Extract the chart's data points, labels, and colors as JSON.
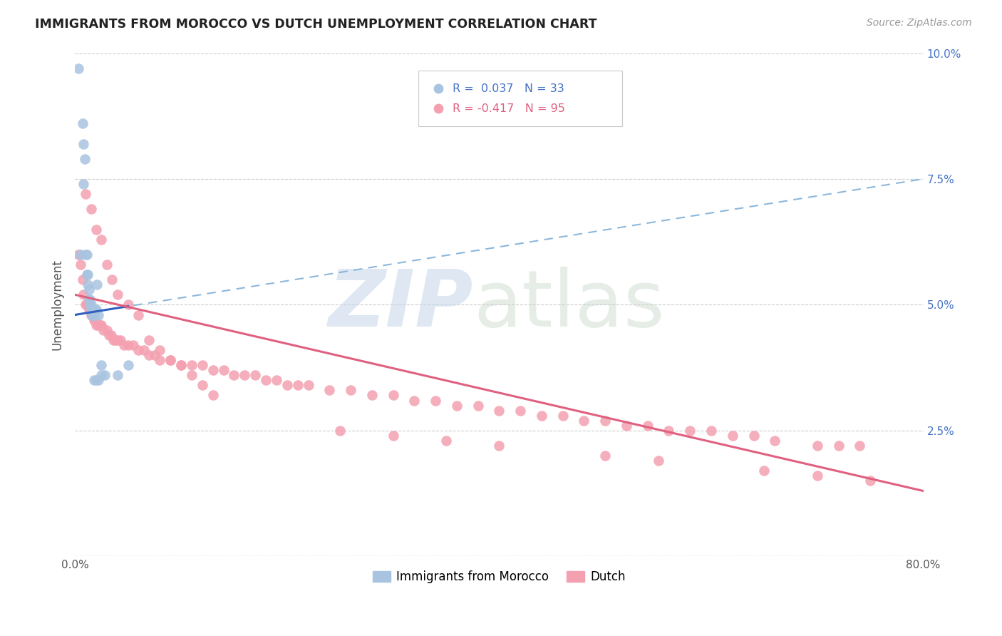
{
  "title": "IMMIGRANTS FROM MOROCCO VS DUTCH UNEMPLOYMENT CORRELATION CHART",
  "source": "Source: ZipAtlas.com",
  "ylabel": "Unemployment",
  "xlim": [
    0.0,
    0.8
  ],
  "ylim": [
    0.0,
    0.1
  ],
  "yticks": [
    0.0,
    0.025,
    0.05,
    0.075,
    0.1
  ],
  "ytick_labels": [
    "",
    "2.5%",
    "5.0%",
    "7.5%",
    "10.0%"
  ],
  "xticks": [
    0.0,
    0.1,
    0.2,
    0.3,
    0.4,
    0.5,
    0.6,
    0.7,
    0.8
  ],
  "xtick_labels": [
    "0.0%",
    "",
    "",
    "",
    "",
    "",
    "",
    "",
    "80.0%"
  ],
  "morocco_color": "#a8c4e0",
  "dutch_color": "#f4a0b0",
  "morocco_line_color": "#3060c0",
  "dutch_line_color": "#e06080",
  "morocco_dashed_color": "#80b0d8",
  "background_color": "#ffffff",
  "grid_color": "#cccccc",
  "morocco_trend_x0": 0.0,
  "morocco_trend_y0": 0.048,
  "morocco_trend_x1": 0.8,
  "morocco_trend_y1": 0.075,
  "dutch_trend_x0": 0.0,
  "dutch_trend_y0": 0.052,
  "dutch_trend_x1": 0.8,
  "dutch_trend_y1": 0.013,
  "morocco_x": [
    0.003,
    0.007,
    0.008,
    0.009,
    0.01,
    0.011,
    0.011,
    0.012,
    0.012,
    0.013,
    0.013,
    0.014,
    0.014,
    0.015,
    0.015,
    0.016,
    0.016,
    0.017,
    0.018,
    0.019,
    0.02,
    0.021,
    0.022,
    0.025,
    0.028,
    0.04,
    0.05,
    0.005,
    0.02,
    0.022,
    0.025,
    0.008,
    0.018
  ],
  "morocco_y": [
    0.097,
    0.086,
    0.082,
    0.079,
    0.06,
    0.06,
    0.056,
    0.056,
    0.054,
    0.053,
    0.051,
    0.051,
    0.05,
    0.05,
    0.049,
    0.049,
    0.048,
    0.048,
    0.048,
    0.049,
    0.049,
    0.054,
    0.048,
    0.036,
    0.036,
    0.036,
    0.038,
    0.06,
    0.035,
    0.035,
    0.038,
    0.074,
    0.035
  ],
  "dutch_x": [
    0.003,
    0.005,
    0.007,
    0.008,
    0.01,
    0.011,
    0.012,
    0.013,
    0.014,
    0.015,
    0.016,
    0.018,
    0.019,
    0.02,
    0.022,
    0.024,
    0.025,
    0.027,
    0.03,
    0.032,
    0.034,
    0.036,
    0.038,
    0.04,
    0.043,
    0.046,
    0.05,
    0.055,
    0.06,
    0.065,
    0.07,
    0.075,
    0.08,
    0.09,
    0.1,
    0.11,
    0.12,
    0.13,
    0.14,
    0.15,
    0.16,
    0.17,
    0.18,
    0.19,
    0.2,
    0.21,
    0.22,
    0.24,
    0.26,
    0.28,
    0.3,
    0.32,
    0.34,
    0.36,
    0.38,
    0.4,
    0.42,
    0.44,
    0.46,
    0.48,
    0.5,
    0.52,
    0.54,
    0.56,
    0.58,
    0.6,
    0.62,
    0.64,
    0.66,
    0.7,
    0.72,
    0.74,
    0.01,
    0.015,
    0.02,
    0.025,
    0.03,
    0.035,
    0.04,
    0.05,
    0.06,
    0.07,
    0.08,
    0.09,
    0.1,
    0.11,
    0.12,
    0.13,
    0.25,
    0.3,
    0.35,
    0.4,
    0.5,
    0.55,
    0.65,
    0.7,
    0.75
  ],
  "dutch_y": [
    0.06,
    0.058,
    0.055,
    0.052,
    0.05,
    0.05,
    0.05,
    0.049,
    0.049,
    0.048,
    0.048,
    0.047,
    0.047,
    0.046,
    0.046,
    0.046,
    0.046,
    0.045,
    0.045,
    0.044,
    0.044,
    0.043,
    0.043,
    0.043,
    0.043,
    0.042,
    0.042,
    0.042,
    0.041,
    0.041,
    0.04,
    0.04,
    0.039,
    0.039,
    0.038,
    0.038,
    0.038,
    0.037,
    0.037,
    0.036,
    0.036,
    0.036,
    0.035,
    0.035,
    0.034,
    0.034,
    0.034,
    0.033,
    0.033,
    0.032,
    0.032,
    0.031,
    0.031,
    0.03,
    0.03,
    0.029,
    0.029,
    0.028,
    0.028,
    0.027,
    0.027,
    0.026,
    0.026,
    0.025,
    0.025,
    0.025,
    0.024,
    0.024,
    0.023,
    0.022,
    0.022,
    0.022,
    0.072,
    0.069,
    0.065,
    0.063,
    0.058,
    0.055,
    0.052,
    0.05,
    0.048,
    0.043,
    0.041,
    0.039,
    0.038,
    0.036,
    0.034,
    0.032,
    0.025,
    0.024,
    0.023,
    0.022,
    0.02,
    0.019,
    0.017,
    0.016,
    0.015
  ]
}
